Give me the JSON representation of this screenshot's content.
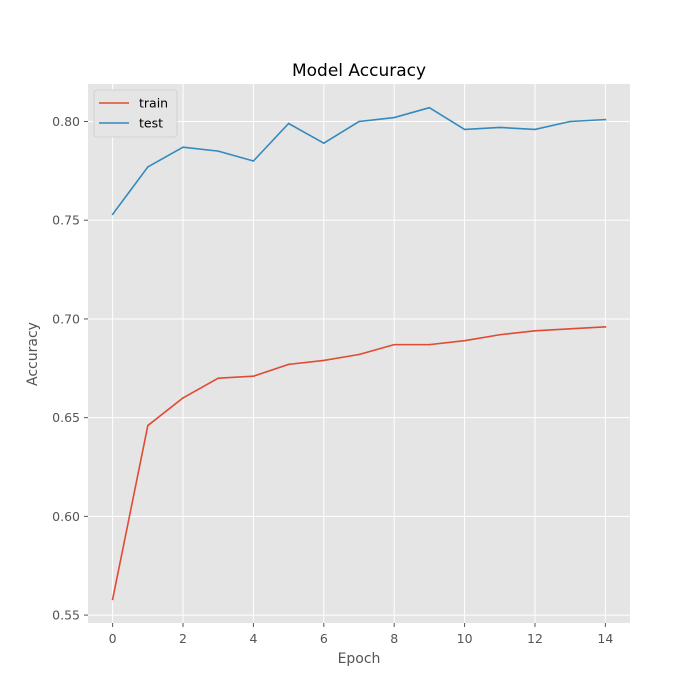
{
  "chart_data": {
    "type": "line",
    "title": "Model Accuracy",
    "xlabel": "Epoch",
    "ylabel": "Accuracy",
    "x": [
      0,
      1,
      2,
      3,
      4,
      5,
      6,
      7,
      8,
      9,
      10,
      11,
      12,
      13,
      14
    ],
    "xlim": [
      -0.7,
      14.7
    ],
    "ylim": [
      0.546,
      0.819
    ],
    "xticks": [
      0,
      2,
      4,
      6,
      8,
      10,
      12,
      14
    ],
    "xtick_labels": [
      "0",
      "2",
      "4",
      "6",
      "8",
      "10",
      "12",
      "14"
    ],
    "yticks": [
      0.55,
      0.6,
      0.65,
      0.7,
      0.75,
      0.8
    ],
    "ytick_labels": [
      "0.55",
      "0.60",
      "0.65",
      "0.70",
      "0.75",
      "0.80"
    ],
    "grid": true,
    "legend_position": "top-left",
    "series": [
      {
        "name": "train",
        "color": "#E24A33",
        "values": [
          0.558,
          0.646,
          0.66,
          0.67,
          0.671,
          0.677,
          0.679,
          0.682,
          0.687,
          0.687,
          0.689,
          0.692,
          0.694,
          0.695,
          0.696
        ]
      },
      {
        "name": "test",
        "color": "#348ABD",
        "values": [
          0.753,
          0.777,
          0.787,
          0.785,
          0.78,
          0.799,
          0.789,
          0.8,
          0.802,
          0.807,
          0.796,
          0.797,
          0.796,
          0.8,
          0.801
        ]
      }
    ]
  }
}
